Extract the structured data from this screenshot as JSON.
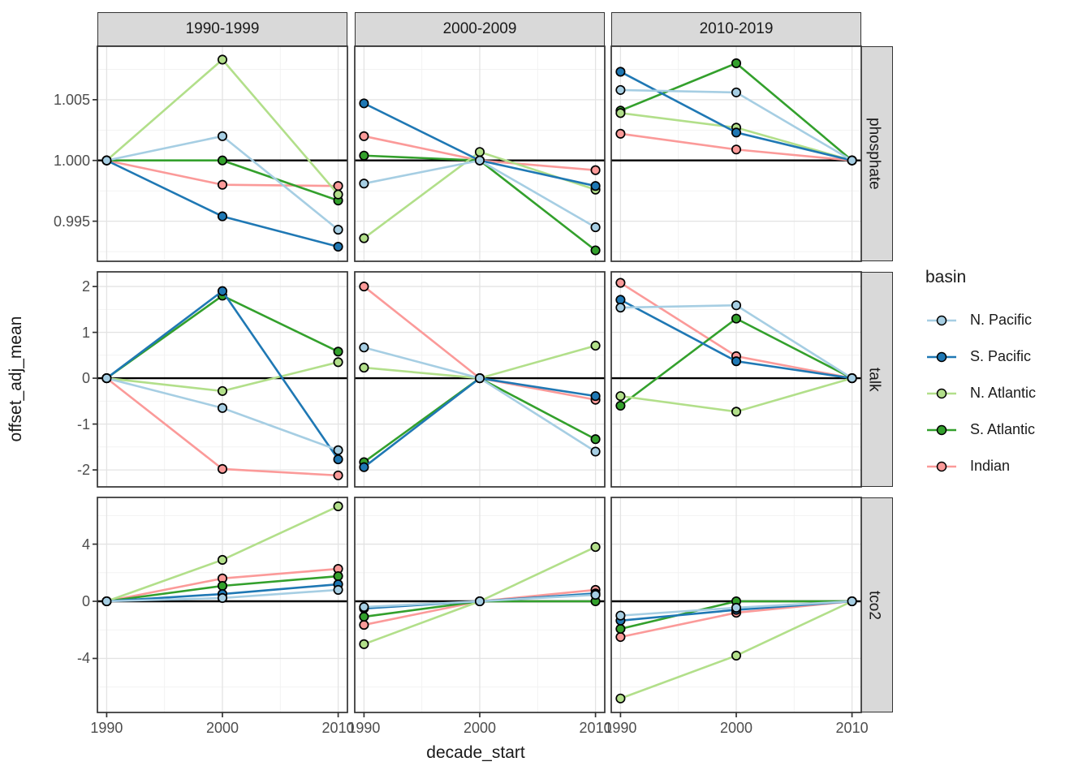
{
  "figure_title": "",
  "chart_data": {
    "type": "line",
    "facet_columns": [
      "1990-1999",
      "2000-2009",
      "2010-2019"
    ],
    "facet_rows": [
      "phosphate",
      "talk",
      "tco2"
    ],
    "x": [
      1990,
      2000,
      2010
    ],
    "x_tick_labels": [
      "1990",
      "2000",
      "2010"
    ],
    "xlabel": "decade_start",
    "ylabel": "offset_adj_mean",
    "legend_title": "basin",
    "legend_position": "right",
    "grid": true,
    "series": [
      {
        "name": "N. Pacific",
        "color": "#a6cee3"
      },
      {
        "name": "S. Pacific",
        "color": "#1f78b4"
      },
      {
        "name": "N. Atlantic",
        "color": "#b2df8a"
      },
      {
        "name": "S. Atlantic",
        "color": "#33a02c"
      },
      {
        "name": "Indian",
        "color": "#fb9a99"
      }
    ],
    "rows": [
      {
        "label": "phosphate",
        "yticks": [
          0.995,
          1.0,
          1.005
        ],
        "ytick_labels": [
          "0.995",
          "1.000",
          "1.005"
        ],
        "ylim": [
          0.9917,
          1.0094
        ],
        "reference_y": 1.0,
        "panels": [
          {
            "column": "1990-1999",
            "values": {
              "N. Pacific": [
                1.0,
                1.002,
                0.9943
              ],
              "S. Pacific": [
                1.0,
                0.9954,
                0.9929
              ],
              "N. Atlantic": [
                1.0,
                1.0083,
                0.9972
              ],
              "S. Atlantic": [
                1.0,
                1.0,
                0.9967
              ],
              "Indian": [
                1.0,
                0.998,
                0.9979
              ]
            }
          },
          {
            "column": "2000-2009",
            "values": {
              "N. Pacific": [
                0.9981,
                1.0,
                0.9945
              ],
              "S. Pacific": [
                1.0047,
                1.0,
                0.9979
              ],
              "N. Atlantic": [
                0.9936,
                1.0007,
                0.9976
              ],
              "S. Atlantic": [
                1.0004,
                1.0,
                0.9926
              ],
              "Indian": [
                1.002,
                1.0,
                0.9992
              ]
            }
          },
          {
            "column": "2010-2019",
            "values": {
              "N. Pacific": [
                1.0058,
                1.0056,
                1.0
              ],
              "S. Pacific": [
                1.0073,
                1.0023,
                1.0
              ],
              "N. Atlantic": [
                1.0039,
                1.0027,
                1.0
              ],
              "S. Atlantic": [
                1.0041,
                1.008,
                1.0
              ],
              "Indian": [
                1.0022,
                1.0009,
                1.0
              ]
            }
          }
        ]
      },
      {
        "label": "talk",
        "yticks": [
          -2,
          -1,
          0,
          1,
          2
        ],
        "ytick_labels": [
          "-2",
          "-1",
          "0",
          "1",
          "2"
        ],
        "ylim": [
          -2.37,
          2.32
        ],
        "reference_y": 0,
        "panels": [
          {
            "column": "1990-1999",
            "values": {
              "N. Pacific": [
                0,
                -0.65,
                -1.57
              ],
              "S. Pacific": [
                0,
                1.9,
                -1.77
              ],
              "N. Atlantic": [
                0,
                -0.28,
                0.35
              ],
              "S. Atlantic": [
                0,
                1.8,
                0.58
              ],
              "Indian": [
                0,
                -1.98,
                -2.12
              ]
            }
          },
          {
            "column": "2000-2009",
            "values": {
              "N. Pacific": [
                0.67,
                0,
                -1.6
              ],
              "S. Pacific": [
                -1.94,
                0,
                -0.39
              ],
              "N. Atlantic": [
                0.23,
                0,
                0.71
              ],
              "S. Atlantic": [
                -1.83,
                0,
                -1.33
              ],
              "Indian": [
                2.0,
                0,
                -0.47
              ]
            }
          },
          {
            "column": "2010-2019",
            "values": {
              "N. Pacific": [
                1.54,
                1.59,
                0
              ],
              "S. Pacific": [
                1.71,
                0.37,
                0
              ],
              "N. Atlantic": [
                -0.39,
                -0.73,
                0
              ],
              "S. Atlantic": [
                -0.6,
                1.3,
                0
              ],
              "Indian": [
                2.08,
                0.48,
                0
              ]
            }
          }
        ]
      },
      {
        "label": "tco2",
        "yticks": [
          -4,
          0,
          4
        ],
        "ytick_labels": [
          "-4",
          "0",
          "4"
        ],
        "ylim": [
          -7.78,
          7.27
        ],
        "reference_y": 0,
        "panels": [
          {
            "column": "1990-1999",
            "values": {
              "N. Pacific": [
                0,
                0.23,
                0.8
              ],
              "S. Pacific": [
                0,
                0.51,
                1.19
              ],
              "N. Atlantic": [
                0,
                2.9,
                6.65
              ],
              "S. Atlantic": [
                0,
                1.08,
                1.76
              ],
              "Indian": [
                0,
                1.6,
                2.27
              ]
            }
          },
          {
            "column": "2000-2009",
            "values": {
              "N. Pacific": [
                -0.4,
                0,
                0.45
              ],
              "S. Pacific": [
                -0.5,
                0,
                0.55
              ],
              "N. Atlantic": [
                -3.0,
                0,
                3.8
              ],
              "S. Atlantic": [
                -1.08,
                0,
                0.0
              ],
              "Indian": [
                -1.65,
                0,
                0.8
              ]
            }
          },
          {
            "column": "2010-2019",
            "values": {
              "N. Pacific": [
                -1.0,
                -0.45,
                0
              ],
              "S. Pacific": [
                -1.35,
                -0.6,
                0
              ],
              "N. Atlantic": [
                -6.8,
                -3.8,
                0
              ],
              "S. Atlantic": [
                -1.93,
                0.0,
                0
              ],
              "Indian": [
                -2.5,
                -0.8,
                0
              ]
            }
          }
        ]
      }
    ]
  },
  "colors": {
    "strip_bg": "#d9d9d9",
    "panel_border": "#333333",
    "grid_major": "#e3e3e3",
    "grid_minor": "#f1f1f1",
    "reference_line": "#000000",
    "point_outline": "#000000",
    "tick_text": "#4d4d4d",
    "title_text": "#1a1a1a"
  }
}
